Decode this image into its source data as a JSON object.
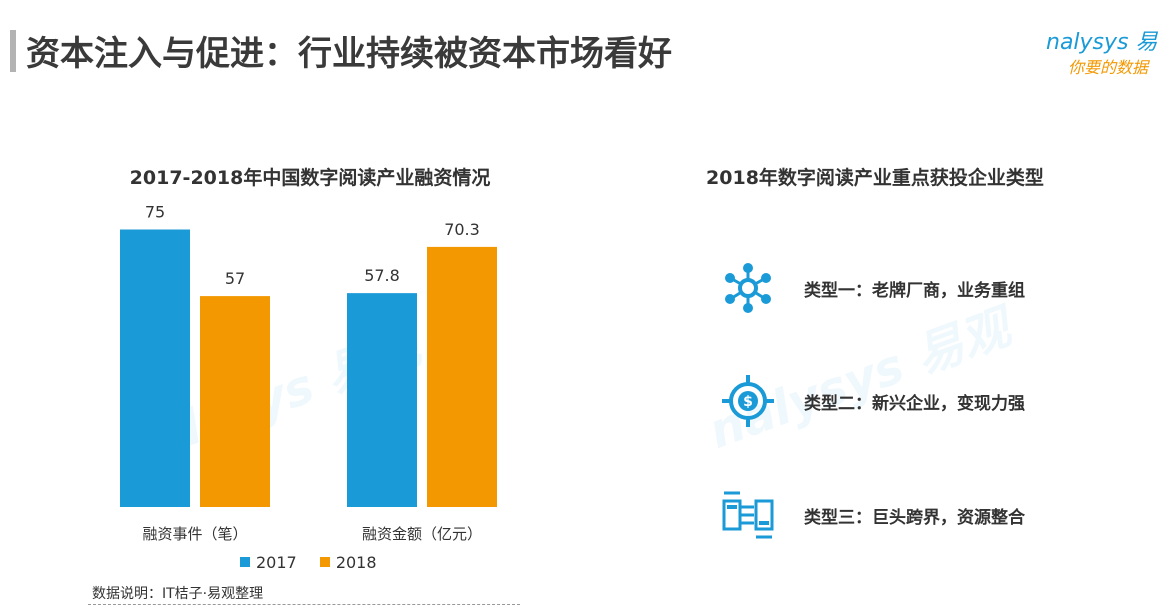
{
  "header": {
    "title": "资本注入与促进：行业持续被资本市场看好",
    "logo_text": "nalysys 易",
    "logo_tagline": "你要的数据",
    "accent_color": "#1a9ad6",
    "secondary_color": "#f39800"
  },
  "chart_data": {
    "type": "bar",
    "title": "2017-2018年中国数字阅读产业融资情况",
    "categories": [
      "融资事件（笔）",
      "融资金额（亿元）"
    ],
    "series": [
      {
        "name": "2017",
        "values": [
          75,
          57.8
        ],
        "color": "#1a9ad6"
      },
      {
        "name": "2018",
        "values": [
          57,
          70.3
        ],
        "color": "#f39800"
      }
    ],
    "value_labels": [
      [
        "75",
        "57.8"
      ],
      [
        "57",
        "70.3"
      ]
    ],
    "ylim": [
      0,
      80
    ],
    "grid": false,
    "legend": "bottom"
  },
  "source": "数据说明：IT桔子·易观整理",
  "investment_types": {
    "title": "2018年数字阅读产业重点获投企业类型",
    "items": [
      {
        "icon": "network-hub-icon",
        "label": "类型一：老牌厂商，业务重组"
      },
      {
        "icon": "dollar-target-icon",
        "label": "类型二：新兴企业，变现力强"
      },
      {
        "icon": "plug-connect-icon",
        "label": "类型三：巨头跨界，资源整合"
      }
    ]
  }
}
